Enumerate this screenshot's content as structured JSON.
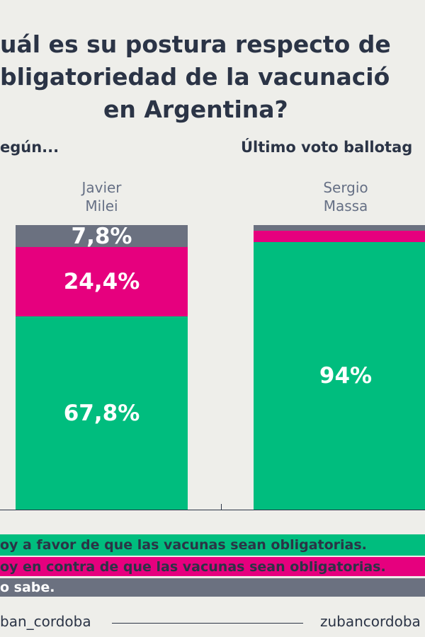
{
  "chart_data": {
    "type": "stacked-bar",
    "title": [
      "uál es su postura respecto de",
      "bligatoriedad de la vacunació",
      "en Argentina?"
    ],
    "subtitles": [
      "egún...",
      "Último voto ballotag"
    ],
    "categories": [
      "Javier Milei",
      "Sergio Massa"
    ],
    "series": [
      {
        "name": "oy a favor de que las vacunas sean obligatorias.",
        "color": "#00bd7e",
        "values": [
          67.8,
          94
        ],
        "value_labels": [
          "67,8%",
          "94%"
        ]
      },
      {
        "name": "oy en contra de que las vacunas sean obligatorias.",
        "color": "#e6007e",
        "values": [
          24.4,
          4
        ],
        "value_labels": [
          "24,4%",
          null
        ]
      },
      {
        "name": "o sabe.",
        "color": "#6b7180",
        "values": [
          7.8,
          2
        ],
        "value_labels": [
          "7,8%",
          null
        ]
      }
    ],
    "ylim": [
      0,
      100
    ],
    "footer": [
      "ban_cordoba",
      "zubancordoba"
    ]
  }
}
